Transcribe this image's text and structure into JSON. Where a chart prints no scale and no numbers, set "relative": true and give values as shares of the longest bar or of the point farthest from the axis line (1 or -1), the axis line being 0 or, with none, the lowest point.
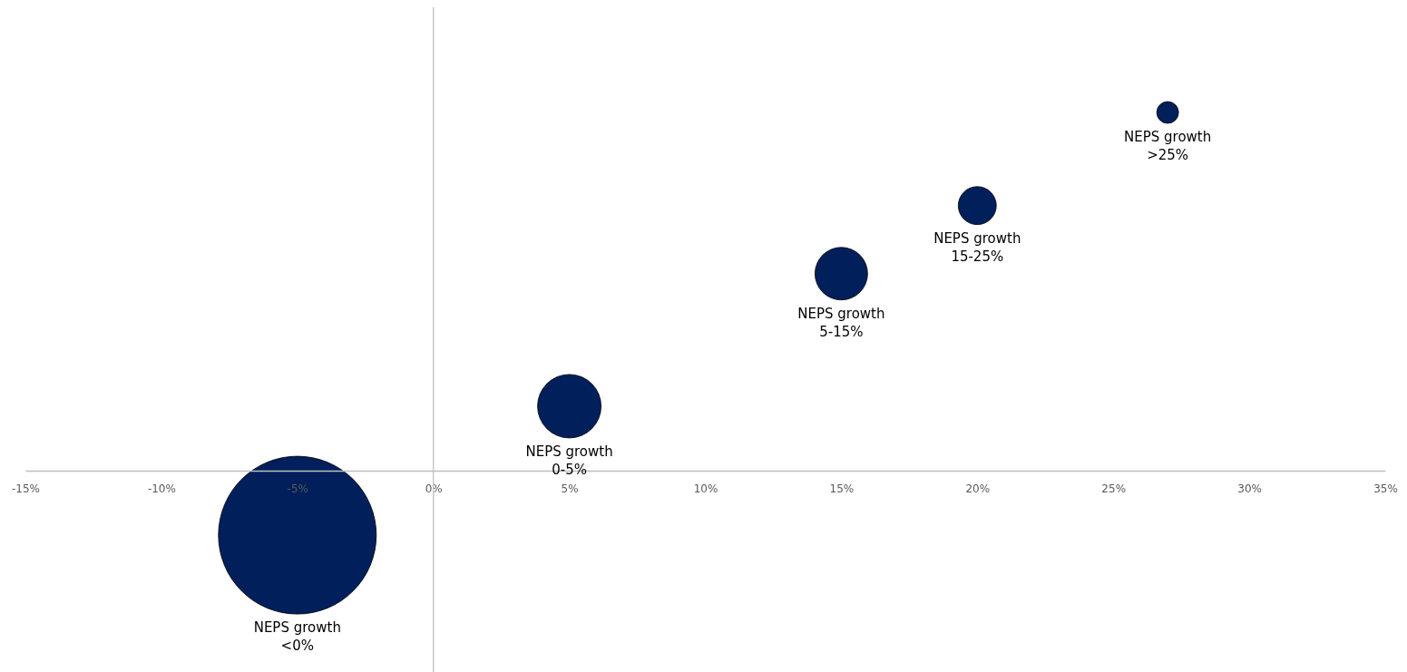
{
  "chart_data": {
    "type": "bubble",
    "relative": true,
    "tick_labels": "x",
    "xlim": [
      -15,
      35
    ],
    "xticks": [
      {
        "value": -15,
        "label": "-15%"
      },
      {
        "value": -10,
        "label": "-10%"
      },
      {
        "value": -5,
        "label": "-5%"
      },
      {
        "value": 0,
        "label": "0%"
      },
      {
        "value": 5,
        "label": "5%"
      },
      {
        "value": 10,
        "label": "10%"
      },
      {
        "value": 15,
        "label": "15%"
      },
      {
        "value": 20,
        "label": "20%"
      },
      {
        "value": 25,
        "label": "25%"
      },
      {
        "value": 30,
        "label": "30%"
      },
      {
        "value": 35,
        "label": "35%"
      }
    ],
    "series": [
      {
        "color": "#001f5b",
        "x": [
          -5,
          5,
          15,
          20,
          27
        ],
        "values": [
          -0.18,
          0.18,
          0.55,
          0.74,
          1
        ],
        "sizes": [
          1,
          0.162,
          0.111,
          0.058,
          0.019
        ]
      }
    ],
    "annotations": [
      "NEPS growth\n<0%",
      "NEPS growth\n0-5%",
      "NEPS growth\n5-15%",
      "NEPS growth\n15-25%",
      "NEPS growth\n>25%"
    ]
  }
}
